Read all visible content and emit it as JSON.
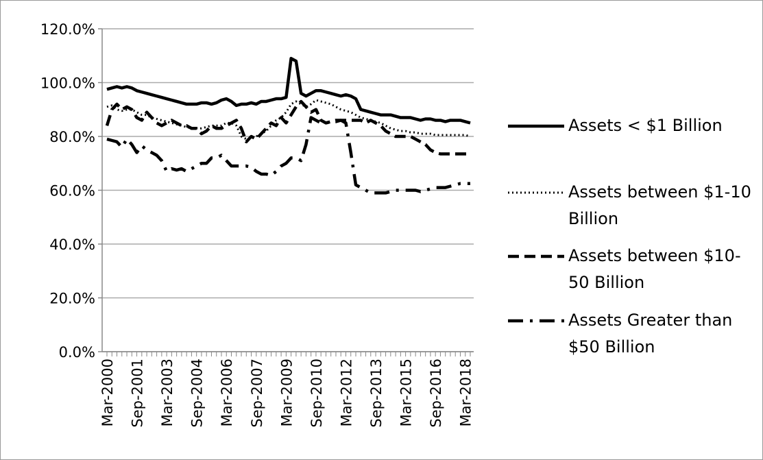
{
  "chart_data": {
    "type": "line",
    "categories": [
      "Mar-2000",
      null,
      null,
      null,
      null,
      null,
      "Sep-2001",
      null,
      null,
      null,
      null,
      null,
      "Mar-2003",
      null,
      null,
      null,
      null,
      null,
      "Sep-2004",
      null,
      null,
      null,
      null,
      null,
      "Mar-2006",
      null,
      null,
      null,
      null,
      null,
      "Sep-2007",
      null,
      null,
      null,
      null,
      null,
      "Mar-2009",
      null,
      null,
      null,
      null,
      null,
      "Sep-2010",
      null,
      null,
      null,
      null,
      null,
      "Mar-2012",
      null,
      null,
      null,
      null,
      null,
      "Sep-2013",
      null,
      null,
      null,
      null,
      null,
      "Mar-2015",
      null,
      null,
      null,
      null,
      null,
      "Sep-2016",
      null,
      null,
      null,
      null,
      null,
      "Mar-2018",
      null
    ],
    "series": [
      {
        "name": "Assets < $1 Billion",
        "color": "#000000",
        "style": "solid",
        "values": [
          97.5,
          98,
          98.5,
          98,
          98.5,
          98,
          97,
          96.5,
          96,
          95.5,
          95,
          94.5,
          94,
          93.5,
          93,
          92.5,
          92,
          92,
          92,
          92.5,
          92.5,
          92,
          92.5,
          93.5,
          94,
          93,
          91.5,
          92,
          92,
          92.5,
          92,
          93,
          93,
          93.5,
          94,
          94,
          94.5,
          109,
          108,
          96,
          95,
          96,
          97,
          97,
          96.5,
          96,
          95.5,
          95,
          95.5,
          95,
          94,
          90,
          89.5,
          89,
          88.5,
          88,
          88,
          88,
          87.5,
          87,
          87,
          87,
          86.5,
          86,
          86.5,
          86.5,
          86,
          86,
          85.5,
          86,
          86,
          86,
          85.5,
          85
        ]
      },
      {
        "name": "Assets between $1-10 Billion",
        "color": "#000000",
        "style": "dotted",
        "values": [
          91,
          91.5,
          90,
          89.5,
          90,
          90,
          89,
          88,
          88,
          87,
          86.5,
          86,
          85.5,
          85,
          84.5,
          84,
          83.5,
          83,
          83,
          83,
          83.5,
          84,
          84,
          84,
          85,
          85,
          84,
          80,
          79,
          79.5,
          80,
          81,
          82,
          84,
          86,
          87,
          89,
          92,
          93,
          92,
          91,
          92,
          93.5,
          93,
          92.5,
          92,
          91,
          90,
          89.5,
          89,
          88,
          87,
          86.5,
          86,
          85.5,
          85,
          84,
          83,
          82.5,
          82,
          82,
          81.5,
          81.5,
          81,
          81,
          81,
          80.5,
          80.5,
          80.5,
          80.5,
          80.5,
          80.5,
          80.5,
          80
        ]
      },
      {
        "name": "Assets between $10-50 Billion",
        "color": "#000000",
        "style": "dashed",
        "values": [
          84,
          90,
          92,
          90,
          91,
          90,
          87,
          86,
          89,
          87,
          85,
          84,
          85,
          86,
          85,
          84,
          84,
          83,
          83,
          81,
          82,
          84,
          83,
          83,
          84,
          85,
          86,
          83,
          78,
          80,
          79,
          81,
          83,
          85,
          84,
          87,
          85,
          88,
          91,
          93,
          91,
          89,
          90,
          86,
          85,
          85.5,
          85.5,
          86,
          86,
          86,
          86,
          86,
          85,
          86,
          85,
          84,
          82,
          81,
          80,
          80,
          80,
          80,
          79,
          78,
          77,
          75,
          74,
          73.5,
          73.5,
          73.5,
          73.5,
          73.5,
          73.5,
          73.5
        ]
      },
      {
        "name": "Assets Greater than $50 Billion",
        "color": "#000000",
        "style": "dashdot",
        "values": [
          79,
          78.5,
          78,
          76,
          79,
          77,
          74,
          76.5,
          75,
          74,
          73,
          71,
          67,
          68,
          67.5,
          68,
          67,
          68,
          69,
          70,
          70,
          72,
          72,
          73,
          71,
          69,
          69,
          69,
          69,
          68.5,
          67,
          66,
          66,
          65.5,
          67,
          69,
          70,
          72,
          72,
          71,
          77,
          87,
          86,
          85,
          85,
          85.5,
          86,
          86,
          85,
          74,
          62,
          61,
          60,
          59,
          59,
          59,
          59,
          59.5,
          60,
          60,
          60,
          60,
          60,
          59.5,
          60,
          60.5,
          61,
          61,
          61,
          61.5,
          62,
          62.5,
          62.5,
          62.5
        ]
      }
    ],
    "ylim": [
      0,
      120
    ],
    "yticks": [
      {
        "value": 0,
        "label": "0.0%"
      },
      {
        "value": 20,
        "label": "20.0%"
      },
      {
        "value": 40,
        "label": "40.0%"
      },
      {
        "value": 60,
        "label": "60.0%"
      },
      {
        "value": 80,
        "label": "80.0%"
      },
      {
        "value": 100,
        "label": "100.0%"
      },
      {
        "value": 120,
        "label": "120.0%"
      }
    ],
    "grid": true,
    "legend": "right"
  }
}
